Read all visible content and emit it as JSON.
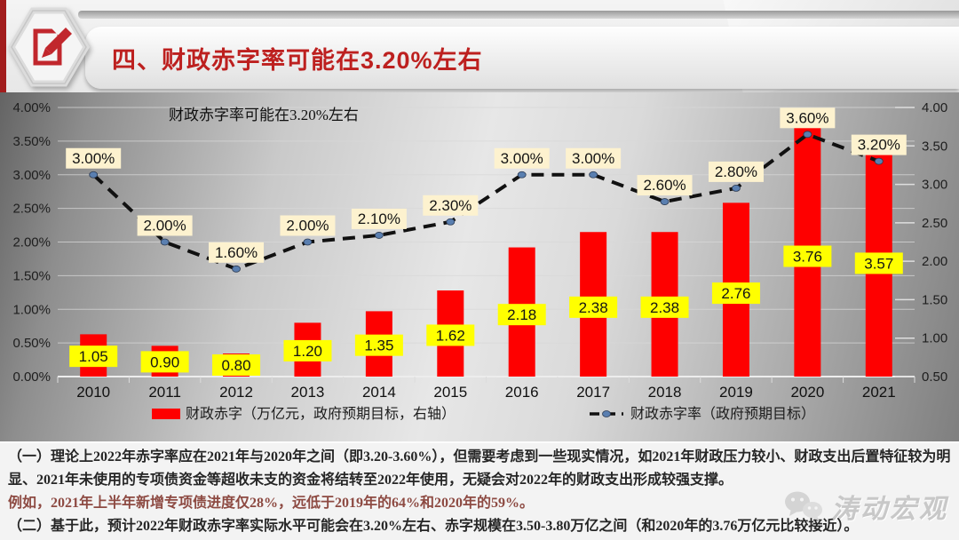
{
  "header": {
    "title": "四、财政赤字率可能在3.20%左右",
    "badge_icon": "edit-pencil-icon"
  },
  "chart_data": {
    "type": "bar",
    "combo": "bar+line",
    "title": "财政赤字率可能在3.20%左右",
    "categories": [
      "2010",
      "2011",
      "2012",
      "2013",
      "2014",
      "2015",
      "2016",
      "2017",
      "2018",
      "2019",
      "2020",
      "2021"
    ],
    "series": [
      {
        "name": "财政赤字（万亿元，政府预期目标，右轴）",
        "type": "bar",
        "axis": "right",
        "values": [
          1.05,
          0.9,
          0.8,
          1.2,
          1.35,
          1.62,
          2.18,
          2.38,
          2.38,
          2.76,
          3.76,
          3.57
        ],
        "labels": [
          "1.05",
          "0.90",
          "0.80",
          "1.20",
          "1.35",
          "1.62",
          "2.18",
          "2.38",
          "2.38",
          "2.76",
          "3.76",
          "3.57"
        ],
        "color": "#fe0000",
        "label_bg": "#ffff00"
      },
      {
        "name": "财政赤字率（政府预期目标）",
        "type": "line",
        "axis": "left",
        "values": [
          3.0,
          2.0,
          1.6,
          2.0,
          2.1,
          2.3,
          3.0,
          3.0,
          2.6,
          2.8,
          3.6,
          3.2
        ],
        "labels": [
          "3.00%",
          "2.00%",
          "1.60%",
          "2.00%",
          "2.10%",
          "2.30%",
          "3.00%",
          "3.00%",
          "2.60%",
          "2.80%",
          "3.60%",
          "3.20%"
        ],
        "color": "#111111",
        "marker_color": "#5a7fb0",
        "label_bg": "#fdf2cf"
      }
    ],
    "left_axis": {
      "unit": "%",
      "min": 0,
      "max": 4,
      "ticks": [
        "0.00%",
        "0.50%",
        "1.00%",
        "1.50%",
        "2.00%",
        "2.50%",
        "3.00%",
        "3.50%",
        "4.00%"
      ]
    },
    "right_axis": {
      "min": 0.5,
      "max": 4,
      "ticks": [
        "0.50",
        "1.00",
        "1.50",
        "2.00",
        "2.50",
        "3.00",
        "3.50",
        "4.00"
      ]
    },
    "grid": true,
    "legend_position": "bottom"
  },
  "analysis": {
    "lines": [
      "（一）理论上2022年赤字率应在2021年与2020年之间（即3.20-3.60%），但需要考虑到一些现实情况，如2021年财政压力较小、财政支出后置特征较为明",
      "显、2021年未使用的专项债资金等超收未支的资金将结转至2022年使用，无疑会对2022年的财政支出形成较强支撑。",
      "例如，2021年上半年新增专项债进度仅28%，远低于2019年的64%和2020年的59%。",
      "（二）基于此，预计2022年财政赤字率实际水平可能会在3.20%左右、赤字规模在3.50-3.80万亿之间（和2020年的3.76万亿元比较接近）。"
    ]
  },
  "watermark": {
    "label": "涛动宏观",
    "icon": "wechat-icon"
  },
  "colors": {
    "accent_red": "#bd201f",
    "bar_red": "#fe0000",
    "bar_label_bg": "#ffff00",
    "rate_label_bg": "#fdf2cf",
    "analysis_highlight": "#8d4a42",
    "watermark_gray": "#c6c6c6"
  }
}
